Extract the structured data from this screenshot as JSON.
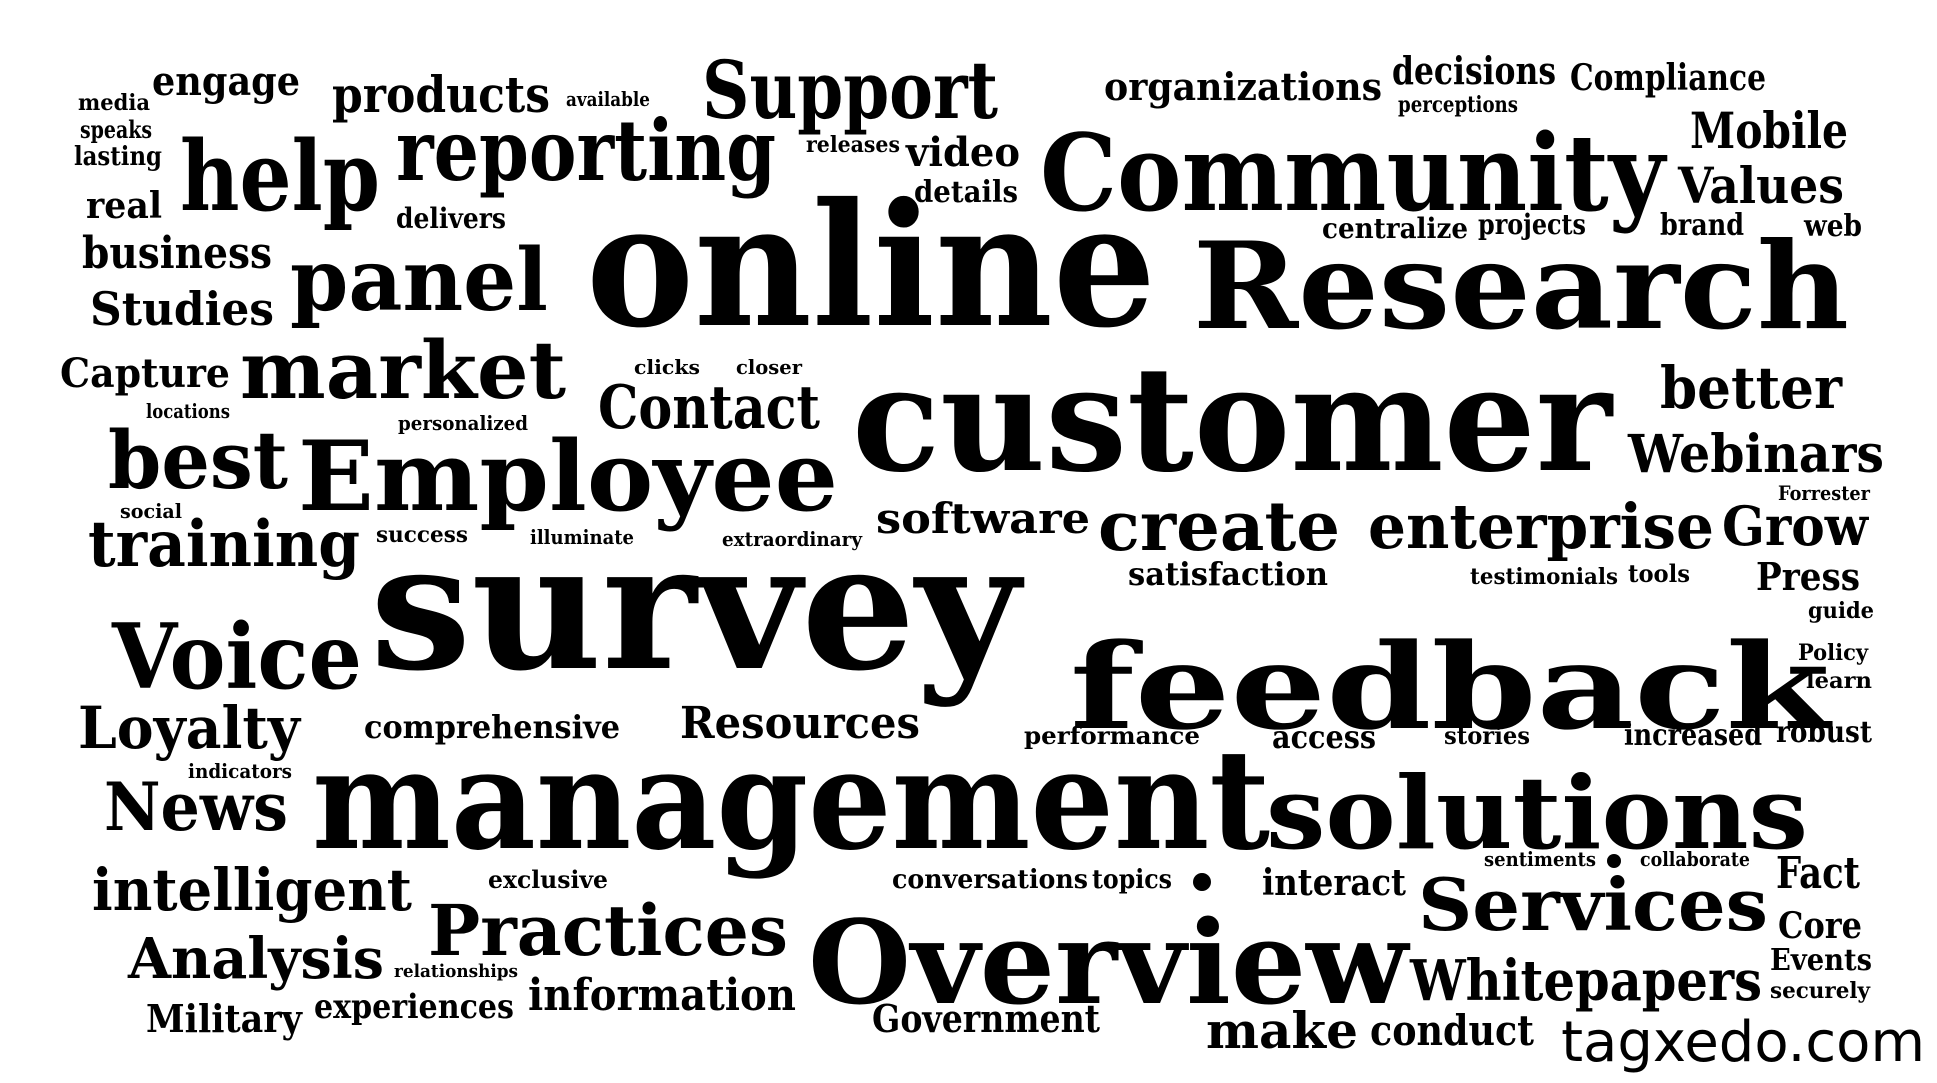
{
  "colors": {
    "background": "#ffffff",
    "ink": "#000000",
    "watermark": "#000000"
  },
  "watermark": "tagxedo.com",
  "words": [
    "survey",
    "online",
    "customer",
    "management",
    "feedback",
    "Research",
    "Community",
    "Overview",
    "solutions",
    "Employee",
    "Voice",
    "help",
    "reporting",
    "Support",
    "panel",
    "market",
    "best",
    "Services",
    "Practices",
    "training",
    "enterprise",
    "Contact",
    "create",
    "Loyalty",
    "News",
    "intelligent",
    "Analysis",
    "Whitepapers",
    "Mobile",
    "Values",
    "better",
    "Webinars",
    "Grow",
    "Studies",
    "business",
    "products",
    "Resources",
    "information",
    "make",
    "conduct",
    "Government",
    "Military",
    "experiences",
    "software",
    "satisfaction",
    "comprehensive",
    "Capture",
    "engage",
    "real",
    "organizations",
    "decisions",
    "Compliance",
    "video",
    "details",
    "Press",
    "Fact",
    "Core",
    "Events",
    "robust",
    "increased",
    "access",
    "interact",
    "centralize",
    "projects",
    "brand",
    "web",
    "delivers",
    "media",
    "speaks",
    "lasting",
    "available",
    "perceptions",
    "releases",
    "clicks",
    "closer",
    "locations",
    "personalized",
    "social",
    "success",
    "illuminate",
    "extraordinary",
    "Forrester",
    "testimonials",
    "tools",
    "guide",
    "Policy",
    "learn",
    "performance",
    "stories",
    "indicators",
    "exclusive",
    "conversations",
    "topics",
    "sentiments",
    "collaborate",
    "relationships",
    "securely"
  ]
}
